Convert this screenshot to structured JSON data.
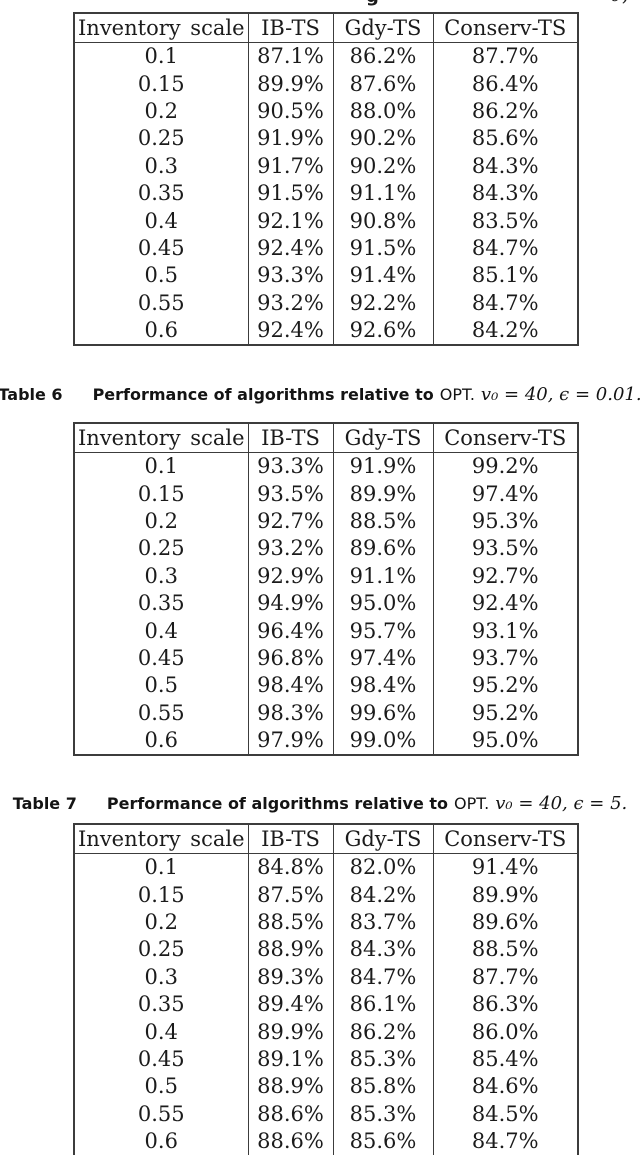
{
  "page": {
    "background": "#ffffff",
    "text_color": "#1b1b1b",
    "line_color": "#3c3c3c"
  },
  "top_fragment": {
    "descender_glyph": "g",
    "right_marks": "0,"
  },
  "tables": [
    {
      "name": "table-untitled-caption-cut-off",
      "caption": null,
      "headers": [
        "Inventory scale",
        "IB-TS",
        "Gdy-TS",
        "Conserv-TS"
      ],
      "rows": [
        [
          "0.1",
          "87.1%",
          "86.2%",
          "87.7%"
        ],
        [
          "0.15",
          "89.9%",
          "87.6%",
          "86.4%"
        ],
        [
          "0.2",
          "90.5%",
          "88.0%",
          "86.2%"
        ],
        [
          "0.25",
          "91.9%",
          "90.2%",
          "85.6%"
        ],
        [
          "0.3",
          "91.7%",
          "90.2%",
          "84.3%"
        ],
        [
          "0.35",
          "91.5%",
          "91.1%",
          "84.3%"
        ],
        [
          "0.4",
          "92.1%",
          "90.8%",
          "83.5%"
        ],
        [
          "0.45",
          "92.4%",
          "91.5%",
          "84.7%"
        ],
        [
          "0.5",
          "93.3%",
          "91.4%",
          "85.1%"
        ],
        [
          "0.55",
          "93.2%",
          "92.2%",
          "84.7%"
        ],
        [
          "0.6",
          "92.4%",
          "92.6%",
          "84.2%"
        ]
      ]
    },
    {
      "name": "table-6",
      "caption": {
        "label": "Table 6",
        "text": "Performance of algorithms relative to",
        "opt": "OPT.",
        "math": "v₀ = 40, ϵ = 0.01."
      },
      "headers": [
        "Inventory scale",
        "IB-TS",
        "Gdy-TS",
        "Conserv-TS"
      ],
      "rows": [
        [
          "0.1",
          "93.3%",
          "91.9%",
          "99.2%"
        ],
        [
          "0.15",
          "93.5%",
          "89.9%",
          "97.4%"
        ],
        [
          "0.2",
          "92.7%",
          "88.5%",
          "95.3%"
        ],
        [
          "0.25",
          "93.2%",
          "89.6%",
          "93.5%"
        ],
        [
          "0.3",
          "92.9%",
          "91.1%",
          "92.7%"
        ],
        [
          "0.35",
          "94.9%",
          "95.0%",
          "92.4%"
        ],
        [
          "0.4",
          "96.4%",
          "95.7%",
          "93.1%"
        ],
        [
          "0.45",
          "96.8%",
          "97.4%",
          "93.7%"
        ],
        [
          "0.5",
          "98.4%",
          "98.4%",
          "95.2%"
        ],
        [
          "0.55",
          "98.3%",
          "99.6%",
          "95.2%"
        ],
        [
          "0.6",
          "97.9%",
          "99.0%",
          "95.0%"
        ]
      ]
    },
    {
      "name": "table-7",
      "caption": {
        "label": "Table 7",
        "text": "Performance of algorithms relative to",
        "opt": "OPT.",
        "math": "v₀ = 40, ϵ = 5."
      },
      "headers": [
        "Inventory scale",
        "IB-TS",
        "Gdy-TS",
        "Conserv-TS"
      ],
      "rows": [
        [
          "0.1",
          "84.8%",
          "82.0%",
          "91.4%"
        ],
        [
          "0.15",
          "87.5%",
          "84.2%",
          "89.9%"
        ],
        [
          "0.2",
          "88.5%",
          "83.7%",
          "89.6%"
        ],
        [
          "0.25",
          "88.9%",
          "84.3%",
          "88.5%"
        ],
        [
          "0.3",
          "89.3%",
          "84.7%",
          "87.7%"
        ],
        [
          "0.35",
          "89.4%",
          "86.1%",
          "86.3%"
        ],
        [
          "0.4",
          "89.9%",
          "86.2%",
          "86.0%"
        ],
        [
          "0.45",
          "89.1%",
          "85.3%",
          "85.4%"
        ],
        [
          "0.5",
          "88.9%",
          "85.8%",
          "84.6%"
        ],
        [
          "0.55",
          "88.6%",
          "85.3%",
          "84.5%"
        ],
        [
          "0.6",
          "88.6%",
          "85.6%",
          "84.7%"
        ]
      ]
    }
  ]
}
